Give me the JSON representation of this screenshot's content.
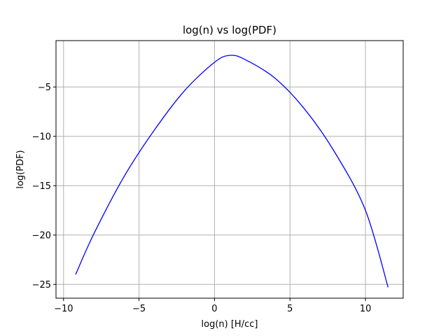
{
  "chart_data": {
    "type": "line",
    "title": "log(n) vs log(PDF)",
    "xlabel": "log(n) [H/cc]",
    "ylabel": "log(PDF)",
    "xlim": [
      -10.5,
      12.5
    ],
    "ylim": [
      -26.4,
      -0.3
    ],
    "xticks": [
      -10,
      -5,
      0,
      5,
      10
    ],
    "xtick_labels": [
      "−10",
      "−5",
      "0",
      "5",
      "10"
    ],
    "yticks": [
      -5,
      -10,
      -15,
      -20,
      -25
    ],
    "ytick_labels": [
      "−5",
      "−10",
      "−15",
      "−20",
      "−25"
    ],
    "grid": true,
    "series": [
      {
        "color": "#0000ff",
        "x": [
          -9.2,
          -8.0,
          -6.0,
          -4.0,
          -2.0,
          0.0,
          1.0,
          2.0,
          4.0,
          6.0,
          8.0,
          10.0,
          11.5
        ],
        "y": [
          -24.0,
          -19.9,
          -14.1,
          -9.4,
          -5.4,
          -2.5,
          -1.8,
          -2.2,
          -4.1,
          -7.3,
          -11.7,
          -17.5,
          -25.3
        ]
      }
    ]
  }
}
